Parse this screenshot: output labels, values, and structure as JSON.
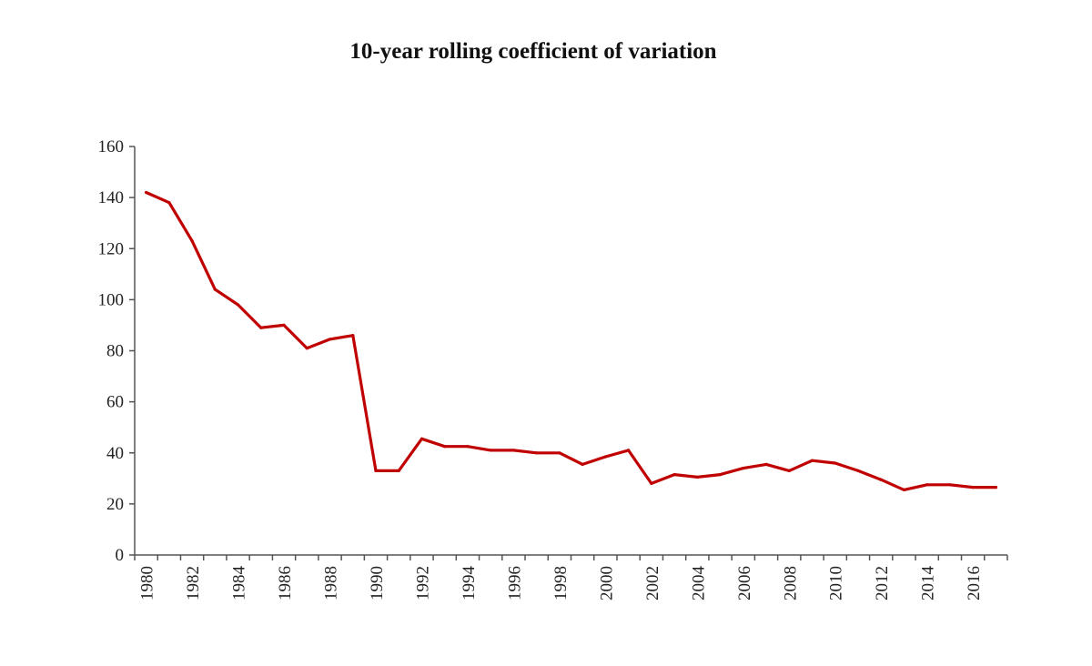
{
  "chart_data": {
    "type": "line",
    "title": "10-year rolling coefficient of variation",
    "xlabel": "",
    "ylabel": "",
    "ylim": [
      0,
      160
    ],
    "yticks": [
      0,
      20,
      40,
      60,
      80,
      100,
      120,
      140,
      160
    ],
    "xtick_labels": [
      "1980",
      "1982",
      "1984",
      "1986",
      "1988",
      "1990",
      "1992",
      "1994",
      "1996",
      "1998",
      "2000",
      "2002",
      "2004",
      "2006",
      "2008",
      "2010",
      "2012",
      "2014",
      "2016"
    ],
    "grid": false,
    "legend": "none",
    "series": [
      {
        "name": "10-year rolling coefficient of variation",
        "color": "#c00000",
        "x": [
          1980,
          1981,
          1982,
          1983,
          1984,
          1985,
          1986,
          1987,
          1988,
          1989,
          1990,
          1991,
          1992,
          1993,
          1994,
          1995,
          1996,
          1997,
          1998,
          1999,
          2000,
          2001,
          2002,
          2003,
          2004,
          2005,
          2006,
          2007,
          2008,
          2009,
          2010,
          2011,
          2012,
          2013,
          2014,
          2015,
          2016,
          2017
        ],
        "values": [
          142,
          138,
          123,
          104,
          98,
          89,
          90,
          81,
          84.5,
          86,
          33,
          33,
          45.5,
          42.5,
          42.5,
          41,
          41,
          40,
          40,
          35.5,
          38.5,
          41,
          28,
          31.5,
          30.5,
          31.5,
          34,
          35.5,
          33,
          37,
          36,
          33,
          29.5,
          25.5,
          27.5,
          27.5,
          26.5,
          26.5
        ]
      }
    ]
  }
}
